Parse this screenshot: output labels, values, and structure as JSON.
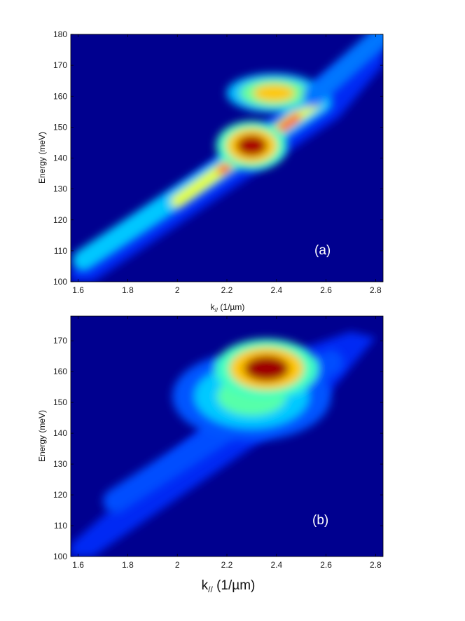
{
  "figure": {
    "background": "#ffffff",
    "colormap": "jet",
    "colormap_stops": [
      "#00008f",
      "#0000ff",
      "#0080ff",
      "#00ffff",
      "#80ff80",
      "#ffff00",
      "#ff8000",
      "#ff0000",
      "#800000"
    ]
  },
  "chart_data": [
    {
      "type": "heatmap",
      "panel_label": "(a)",
      "xlabel_base": "k",
      "xlabel_sub": "//",
      "xlabel_unit": " (1/µm)",
      "ylabel": "Energy (meV)",
      "xlim": [
        1.57,
        2.83
      ],
      "ylim": [
        100,
        180
      ],
      "xticks": [
        "1.6",
        "1.8",
        "2",
        "2.2",
        "2.4",
        "2.6",
        "2.8"
      ],
      "yticks": [
        "100",
        "110",
        "120",
        "130",
        "140",
        "150",
        "160",
        "170",
        "180"
      ],
      "background_level": 0.05,
      "region": [
        [
          1.57,
          104
        ],
        [
          2.62,
          168
        ],
        [
          2.83,
          180
        ],
        [
          2.83,
          170
        ],
        [
          2.65,
          153
        ],
        [
          1.66,
          100
        ],
        [
          1.57,
          100
        ]
      ],
      "features": [
        {
          "kind": "band",
          "from": [
            1.62,
            107
          ],
          "to": [
            2.58,
            158
          ],
          "intensity": 0.32,
          "width": 7
        },
        {
          "kind": "band",
          "from": [
            2.0,
            126
          ],
          "to": [
            2.56,
            158
          ],
          "intensity": 0.6,
          "width": 4
        },
        {
          "kind": "band",
          "from": [
            2.18,
            136
          ],
          "to": [
            2.48,
            153
          ],
          "intensity": 0.78,
          "width": 3
        },
        {
          "kind": "spot",
          "center": [
            2.3,
            144
          ],
          "intensity": 0.96,
          "rx": 0.09,
          "ry": 5
        },
        {
          "kind": "spot",
          "center": [
            2.39,
            161
          ],
          "intensity": 0.68,
          "rx": 0.12,
          "ry": 4
        },
        {
          "kind": "band",
          "from": [
            2.55,
            160
          ],
          "to": [
            2.83,
            180
          ],
          "intensity": 0.24,
          "width": 7
        }
      ]
    },
    {
      "type": "heatmap",
      "panel_label": "(b)",
      "xlabel_base": "k",
      "xlabel_sub": "//",
      "xlabel_unit": " (1/µm)",
      "ylabel": "Energy (meV)",
      "xlim": [
        1.57,
        2.83
      ],
      "ylim": [
        100,
        178
      ],
      "xticks": [
        "1.6",
        "1.8",
        "2",
        "2.2",
        "2.4",
        "2.6",
        "2.8"
      ],
      "yticks": [
        "100",
        "110",
        "120",
        "130",
        "140",
        "150",
        "160",
        "170"
      ],
      "background_level": 0.05,
      "region": [
        [
          1.57,
          104
        ],
        [
          2.45,
          166
        ],
        [
          2.7,
          173
        ],
        [
          2.8,
          171
        ],
        [
          2.6,
          152
        ],
        [
          1.66,
          100
        ],
        [
          1.57,
          100
        ]
      ],
      "features": [
        {
          "kind": "band",
          "from": [
            1.75,
            118
          ],
          "to": [
            2.62,
            163
          ],
          "intensity": 0.2,
          "width": 8
        },
        {
          "kind": "spot",
          "center": [
            2.3,
            152
          ],
          "intensity": 0.46,
          "rx": 0.2,
          "ry": 9
        },
        {
          "kind": "spot",
          "center": [
            2.36,
            161
          ],
          "intensity": 0.97,
          "rx": 0.13,
          "ry": 6
        }
      ]
    }
  ]
}
